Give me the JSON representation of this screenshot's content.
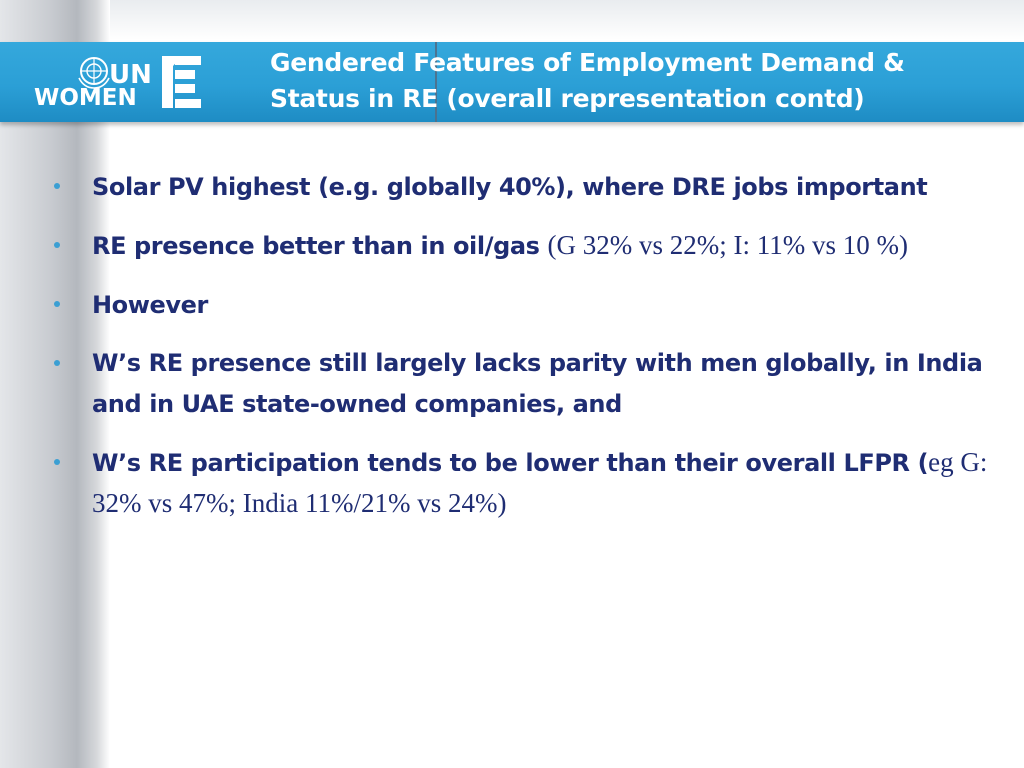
{
  "logo": {
    "line1": "UN",
    "line2": "WOMEN",
    "emblem_icon": "un-emblem-icon",
    "mark_icon": "un-women-mark-icon"
  },
  "title": {
    "line1": "Gendered Features of Employment Demand &",
    "line2": "Status in RE (overall representation contd)"
  },
  "bullets": [
    {
      "bold": "Solar PV highest (e.g. globally 40%), where DRE jobs important",
      "serif": ""
    },
    {
      "bold": "RE presence better than in oil/gas ",
      "serif": "(G 32% vs 22%; I: 11% vs 10 %)"
    },
    {
      "bold": "However",
      "serif": ""
    },
    {
      "bold": "W’s RE presence still largely lacks parity with men globally, in India and in UAE state-owned companies, and",
      "serif": ""
    },
    {
      "bold": "W’s RE participation tends to be lower than their overall LFPR (",
      "serif": "eg G: 32% vs 47%; India 11%/21% vs 24%)"
    }
  ],
  "colors": {
    "header": "#2b9fd6",
    "text": "#1f2d73",
    "bullet": "#3b9fd3"
  }
}
